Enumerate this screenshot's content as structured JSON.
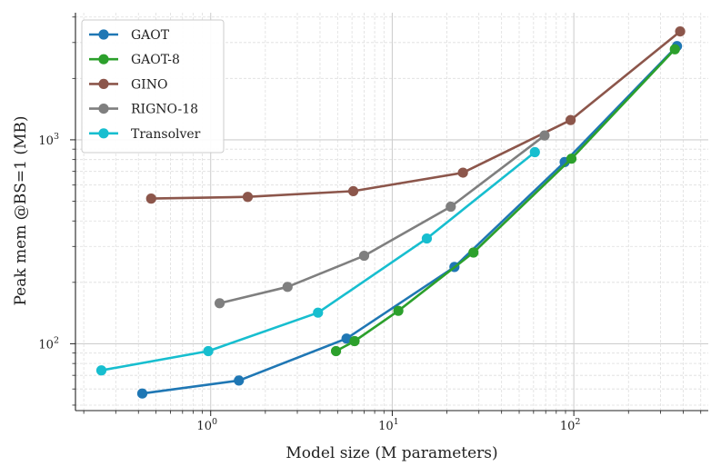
{
  "chart_data": {
    "type": "line",
    "title": "",
    "xlabel": "Model size (M parameters)",
    "ylabel": "Peak mem @BS=1 (MB)",
    "xscale": "log",
    "yscale": "log",
    "xlim": [
      0.18,
      550
    ],
    "ylim": [
      47,
      4200
    ],
    "grid": true,
    "legend_position": "top-left",
    "x_tick_labels": [
      {
        "value": 1,
        "base": "10",
        "exp": "0"
      },
      {
        "value": 10,
        "base": "10",
        "exp": "1"
      },
      {
        "value": 100,
        "base": "10",
        "exp": "2"
      }
    ],
    "y_tick_labels": [
      {
        "value": 100,
        "base": "10",
        "exp": "2"
      },
      {
        "value": 1000,
        "base": "10",
        "exp": "3"
      }
    ],
    "series": [
      {
        "name": "GAOT",
        "color": "#1f77b4",
        "x": [
          0.42,
          1.43,
          5.6,
          22,
          89,
          370
        ],
        "y": [
          57,
          66,
          106,
          238,
          778,
          2880
        ]
      },
      {
        "name": "GAOT-8",
        "color": "#2ca02c",
        "x": [
          4.9,
          6.2,
          10.8,
          28,
          97,
          360
        ],
        "y": [
          92,
          103,
          145,
          280,
          808,
          2780
        ]
      },
      {
        "name": "GINO",
        "color": "#8c564b",
        "x": [
          0.47,
          1.6,
          6.1,
          24.5,
          96,
          385
        ],
        "y": [
          515,
          525,
          560,
          690,
          1250,
          3400
        ]
      },
      {
        "name": "RIGNO-18",
        "color": "#7f7f7f",
        "x": [
          1.12,
          2.65,
          7.0,
          21,
          69
        ],
        "y": [
          158,
          190,
          270,
          470,
          1050
        ]
      },
      {
        "name": "Transolver",
        "color": "#17becf",
        "x": [
          0.25,
          0.97,
          3.9,
          15.5,
          61
        ],
        "y": [
          74,
          92,
          142,
          328,
          870
        ]
      }
    ]
  }
}
